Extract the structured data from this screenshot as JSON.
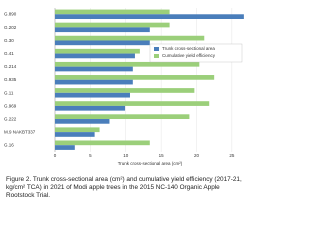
{
  "chart_data": {
    "type": "bar",
    "orientation": "horizontal",
    "categories": [
      "G.890",
      "G.202",
      "G.30",
      "G.41",
      "G.214",
      "G.935",
      "G.11",
      "G.969",
      "G.222",
      "M.9 NAKBT337",
      "G.16"
    ],
    "series": [
      {
        "name": "Trunk cross-sectional area",
        "color": "#4a7ebb",
        "values": [
          26.7,
          13.4,
          13.4,
          11.3,
          11,
          11,
          10.6,
          9.9,
          7.7,
          5.6,
          2.8
        ]
      },
      {
        "name": "Cumulative yield efficiency",
        "color": "#9bcf7a",
        "values": [
          16.2,
          16.2,
          21.1,
          12,
          20.4,
          22.5,
          19.7,
          21.8,
          19,
          6.3,
          13.4
        ]
      }
    ],
    "xlim": [
      0,
      27
    ],
    "xticks": [
      0,
      5,
      10,
      15,
      20,
      25
    ],
    "x_label": "Trunk cross-sectional area (cm²)",
    "legend": "upper right",
    "caption": "Figure 2.  Trunk cross-sectional area (cm²) and cumulative yield efficiency (2017-21, kg/cm² TCA) in 2021 of Modi apple trees in the 2015 NC-140 Organic Apple Rootstock Trial."
  }
}
